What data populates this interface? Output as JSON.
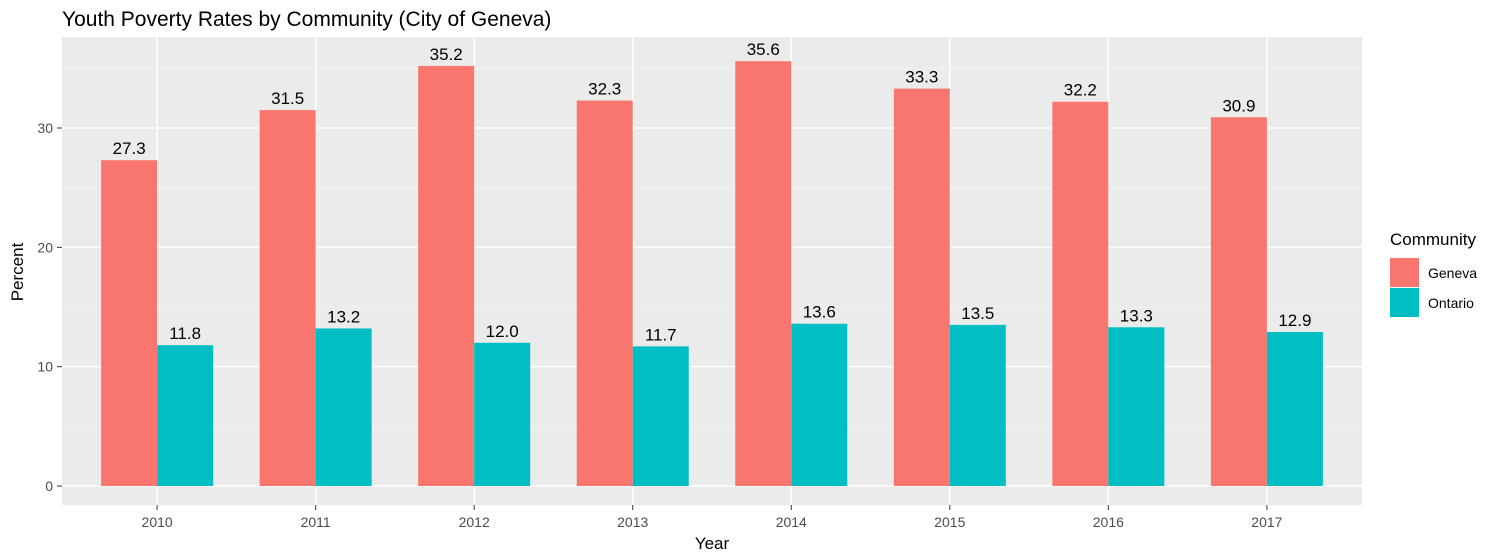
{
  "chart_data": {
    "type": "bar",
    "title": "Youth Poverty Rates by Community (City of Geneva)",
    "xlabel": "Year",
    "ylabel": "Percent",
    "categories": [
      "2010",
      "2011",
      "2012",
      "2013",
      "2014",
      "2015",
      "2016",
      "2017"
    ],
    "series": [
      {
        "name": "Geneva",
        "color": "#F8766D",
        "values": [
          27.3,
          31.5,
          35.2,
          32.3,
          35.6,
          33.3,
          32.2,
          30.9
        ]
      },
      {
        "name": "Ontario",
        "color": "#00BFC4",
        "values": [
          11.8,
          13.2,
          12.0,
          11.7,
          13.6,
          13.5,
          13.3,
          12.9
        ]
      }
    ],
    "data_labels": [
      [
        "27.3",
        "31.5",
        "35.2",
        "32.3",
        "35.6",
        "33.3",
        "32.2",
        "30.9"
      ],
      [
        "11.8",
        "13.2",
        "12.0",
        "11.7",
        "13.6",
        "13.5",
        "13.3",
        "12.9"
      ]
    ],
    "ylim": [
      0,
      37.4
    ],
    "yticks": [
      0,
      10,
      20,
      30
    ],
    "ytick_labels": [
      "0",
      "10",
      "20",
      "30"
    ],
    "legend": {
      "title": "Community",
      "position": "right"
    },
    "grid": true,
    "panel_background": "#EBEBEB"
  }
}
